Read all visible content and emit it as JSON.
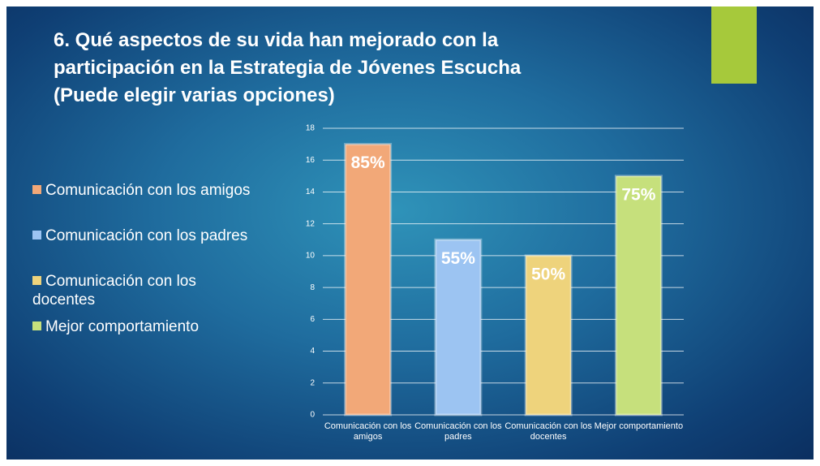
{
  "chart_data": {
    "type": "bar",
    "title_lines": [
      "6. Qué aspectos de su vida han mejorado con la",
      "participación en la Estrategia de Jóvenes Escucha",
      "(Puede elegir varias opciones)"
    ],
    "categories": [
      "Comunicación con los amigos",
      "Comunicación con los padres",
      "Comunicación con los docentes",
      "Mejor comportamiento"
    ],
    "values": [
      17,
      11,
      10,
      15
    ],
    "colors": [
      "#f2a878",
      "#9cc4f2",
      "#eed37c",
      "#c6e07c"
    ],
    "bar_annotations": [
      "85%",
      "55%",
      "50%",
      "75%"
    ],
    "ylim": [
      0,
      18
    ],
    "yticks": [
      0,
      2,
      4,
      6,
      8,
      10,
      12,
      14,
      16,
      18
    ],
    "grid": true,
    "legend": "left"
  }
}
